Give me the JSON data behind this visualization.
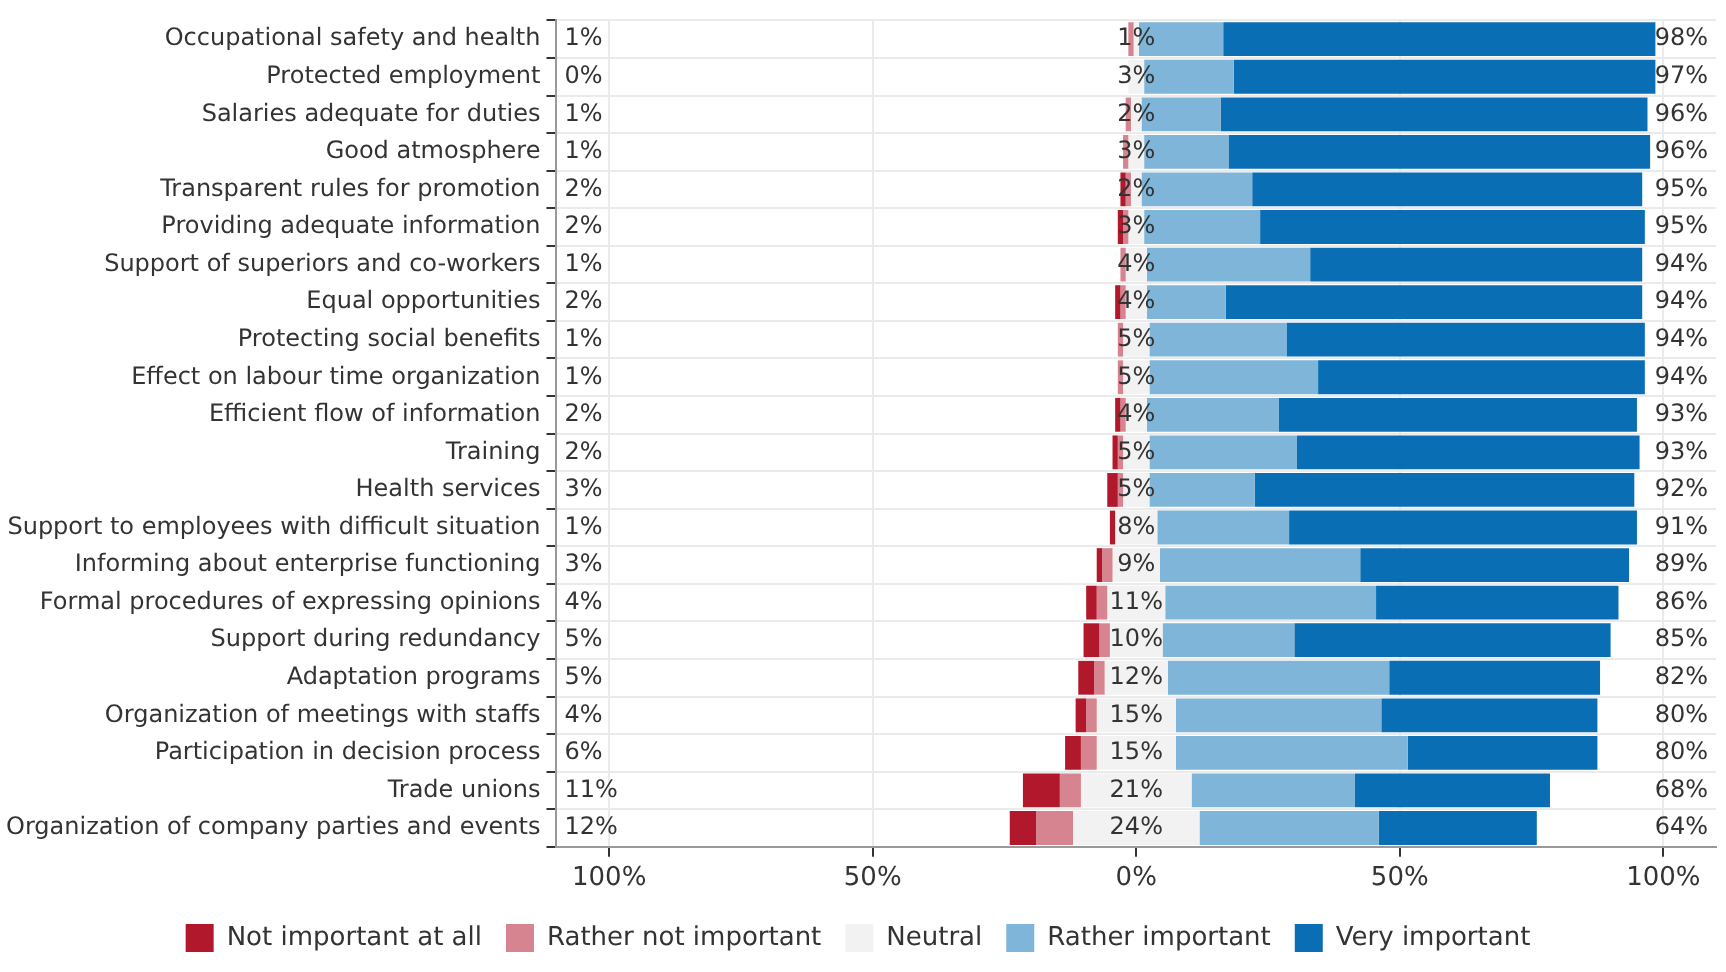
{
  "chart_data": {
    "type": "bar",
    "orientation": "horizontal",
    "categories": [
      "Occupational safety and health",
      "Protected employment",
      "Salaries adequate for duties",
      "Good atmosphere",
      "Transparent rules for promotion",
      "Providing adequate information",
      "Support of superiors and co-workers",
      "Equal opportunities",
      "Protecting social benefits",
      "Effect on labour time organization",
      "Efficient flow of information",
      "Training",
      "Health services",
      "Support to employees with difficult situation",
      "Informing about enterprise functioning",
      "Formal procedures of expressing opinions",
      "Support during redundancy",
      "Adaptation programs",
      "Organization of meetings with staffs",
      "Participation in decision process",
      "Trade unions",
      "Organization of company parties and events"
    ],
    "series": [
      {
        "name": "Not important at all",
        "color": "#b2182b",
        "values": [
          null,
          null,
          null,
          null,
          1,
          1,
          null,
          1,
          null,
          null,
          1,
          1,
          2,
          1,
          1,
          2,
          3,
          3,
          2,
          3,
          7,
          5
        ],
        "base": [
          null,
          null,
          null,
          null,
          -3,
          -3.5,
          null,
          -4,
          null,
          null,
          -4,
          -4.5,
          -5.5,
          -5,
          -7.5,
          -9.5,
          -10,
          -11,
          -11.5,
          -13.5,
          -21.5,
          -24
        ]
      },
      {
        "name": "Rather not important",
        "color": "#d6848f",
        "values": [
          1,
          null,
          1,
          1,
          1,
          1,
          1,
          1,
          1,
          1,
          1,
          1,
          1,
          null,
          2,
          2,
          2,
          2,
          2,
          3,
          4,
          7
        ],
        "base": [
          -1.5,
          null,
          -2,
          -2.5,
          -2,
          -2.5,
          -3,
          -3,
          -3.5,
          -3.5,
          -3,
          -3.5,
          -3.5,
          null,
          -6.5,
          -7.5,
          -7,
          -8,
          -9.5,
          -10.5,
          -14.5,
          -19
        ]
      },
      {
        "name": "Neutral",
        "color": "#f2f2f2",
        "values": [
          1,
          3,
          2,
          3,
          2,
          3,
          4,
          4,
          5,
          5,
          4,
          5,
          5,
          8,
          9,
          11,
          10,
          12,
          15,
          15,
          21,
          24
        ],
        "base": [
          -0.5,
          -1.5,
          -1,
          -1.5,
          -1,
          -1.5,
          -2,
          -2,
          -2.5,
          -2.5,
          -2,
          -2.5,
          -2.5,
          -4,
          -4.5,
          -5.5,
          -5,
          -6,
          -7.5,
          -7.5,
          -10.5,
          -12
        ],
        "value_labels": [
          "1%",
          "3%",
          "2%",
          "3%",
          "2%",
          "3%",
          "4%",
          "4%",
          "5%",
          "5%",
          "4%",
          "5%",
          "5%",
          "8%",
          "9%",
          "11%",
          "10%",
          "12%",
          "15%",
          "15%",
          "21%",
          "24%"
        ]
      },
      {
        "name": "Rather important",
        "color": "#7fb5d8",
        "values": [
          16,
          17,
          15,
          16,
          21,
          22,
          31,
          15,
          26,
          32,
          25,
          28,
          20,
          25,
          38,
          40,
          25,
          42,
          39,
          44,
          31,
          34
        ],
        "base": [
          0.5,
          1.5,
          1,
          1.5,
          1,
          1.5,
          2,
          2,
          2.5,
          2.5,
          2,
          2.5,
          2.5,
          4,
          4.5,
          5.5,
          5,
          6,
          7.5,
          7.5,
          10.5,
          12
        ]
      },
      {
        "name": "Very important",
        "color": "#0a6eb4",
        "values": [
          82,
          80,
          81,
          80,
          74,
          73,
          63,
          79,
          68,
          62,
          68,
          65,
          72,
          66,
          51,
          46,
          60,
          40,
          41,
          36,
          37,
          30
        ],
        "base": [
          16.5,
          18.5,
          16,
          17.5,
          22,
          23.5,
          33,
          17,
          28.5,
          34.5,
          27,
          30.5,
          22.5,
          29,
          42.5,
          45.5,
          30,
          48,
          46.5,
          51.5,
          41.5,
          46
        ]
      }
    ],
    "annotations": [
      "1%",
      "0%",
      "1%",
      "1%",
      "2%",
      "2%",
      "1%",
      "2%",
      "1%",
      "1%",
      "2%",
      "2%",
      "3%",
      "1%",
      "3%",
      "4%",
      "5%",
      "5%",
      "4%",
      "6%",
      "11%",
      "12%",
      "98%",
      "97%",
      "96%",
      "96%",
      "95%",
      "95%",
      "94%",
      "94%",
      "94%",
      "94%",
      "93%",
      "93%",
      "92%",
      "91%",
      "89%",
      "86%",
      "85%",
      "82%",
      "80%",
      "80%",
      "68%",
      "64%"
    ],
    "xlim": [
      -110,
      110
    ],
    "xticks": [
      {
        "value": -100,
        "label": "100%"
      },
      {
        "value": -50,
        "label": "50%"
      },
      {
        "value": 0,
        "label": "0%"
      },
      {
        "value": 50,
        "label": "50%"
      },
      {
        "value": 100,
        "label": "100%"
      }
    ],
    "grid": true,
    "legend": "bottom"
  }
}
